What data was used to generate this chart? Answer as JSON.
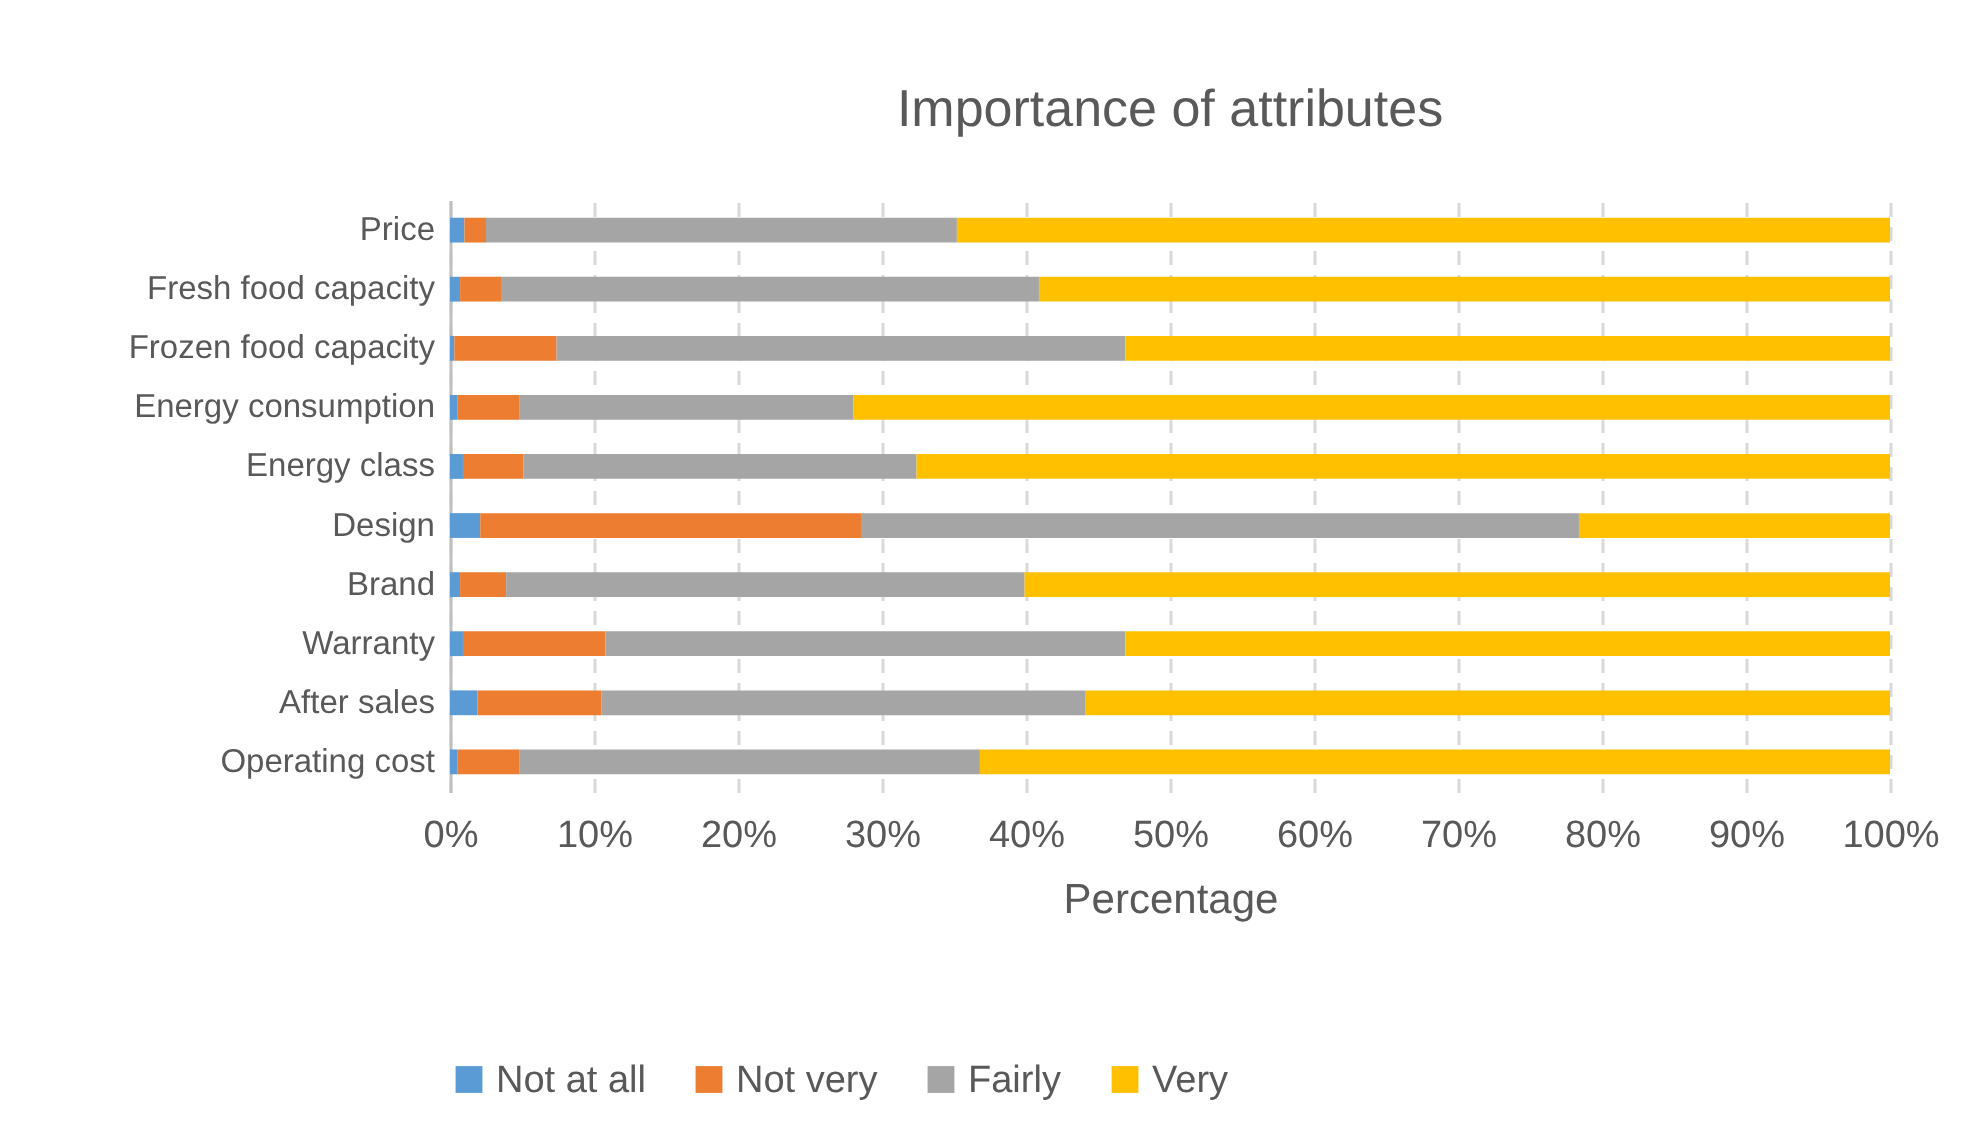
{
  "chart_data": {
    "type": "bar",
    "orientation": "horizontal",
    "stacked": true,
    "title": "Importance of attributes",
    "xlabel": "Percentage",
    "categories": [
      "Price",
      "Fresh food capacity",
      "Frozen food capacity",
      "Energy consumption",
      "Energy class",
      "Design",
      "Brand",
      "Warranty",
      "After sales",
      "Operating cost"
    ],
    "series": [
      {
        "name": "Not at all",
        "color": "#5b9bd5",
        "values": [
          1.0,
          0.7,
          0.3,
          0.5,
          0.9,
          2.1,
          0.7,
          0.9,
          1.9,
          0.5
        ]
      },
      {
        "name": "Not very",
        "color": "#ed7d31",
        "values": [
          1.5,
          2.9,
          7.1,
          4.3,
          4.2,
          26.5,
          3.2,
          9.9,
          8.6,
          4.3
        ]
      },
      {
        "name": "Fairly",
        "color": "#a5a5a5",
        "values": [
          32.7,
          37.3,
          39.5,
          23.2,
          27.3,
          49.8,
          36.0,
          36.1,
          33.6,
          32.0
        ]
      },
      {
        "name": "Very",
        "color": "#ffc000",
        "values": [
          64.8,
          59.1,
          53.1,
          72.0,
          67.6,
          21.6,
          60.1,
          53.1,
          55.9,
          63.2
        ]
      }
    ],
    "xlim": [
      0,
      100
    ],
    "xticks": [
      {
        "value": 0,
        "label": "0%"
      },
      {
        "value": 10,
        "label": "10%"
      },
      {
        "value": 20,
        "label": "20%"
      },
      {
        "value": 30,
        "label": "30%"
      },
      {
        "value": 40,
        "label": "40%"
      },
      {
        "value": 50,
        "label": "50%"
      },
      {
        "value": 60,
        "label": "60%"
      },
      {
        "value": 70,
        "label": "70%"
      },
      {
        "value": 80,
        "label": "80%"
      },
      {
        "value": 90,
        "label": "90%"
      },
      {
        "value": 100,
        "label": "100%"
      }
    ],
    "grid": "x",
    "legend": "bottom"
  }
}
